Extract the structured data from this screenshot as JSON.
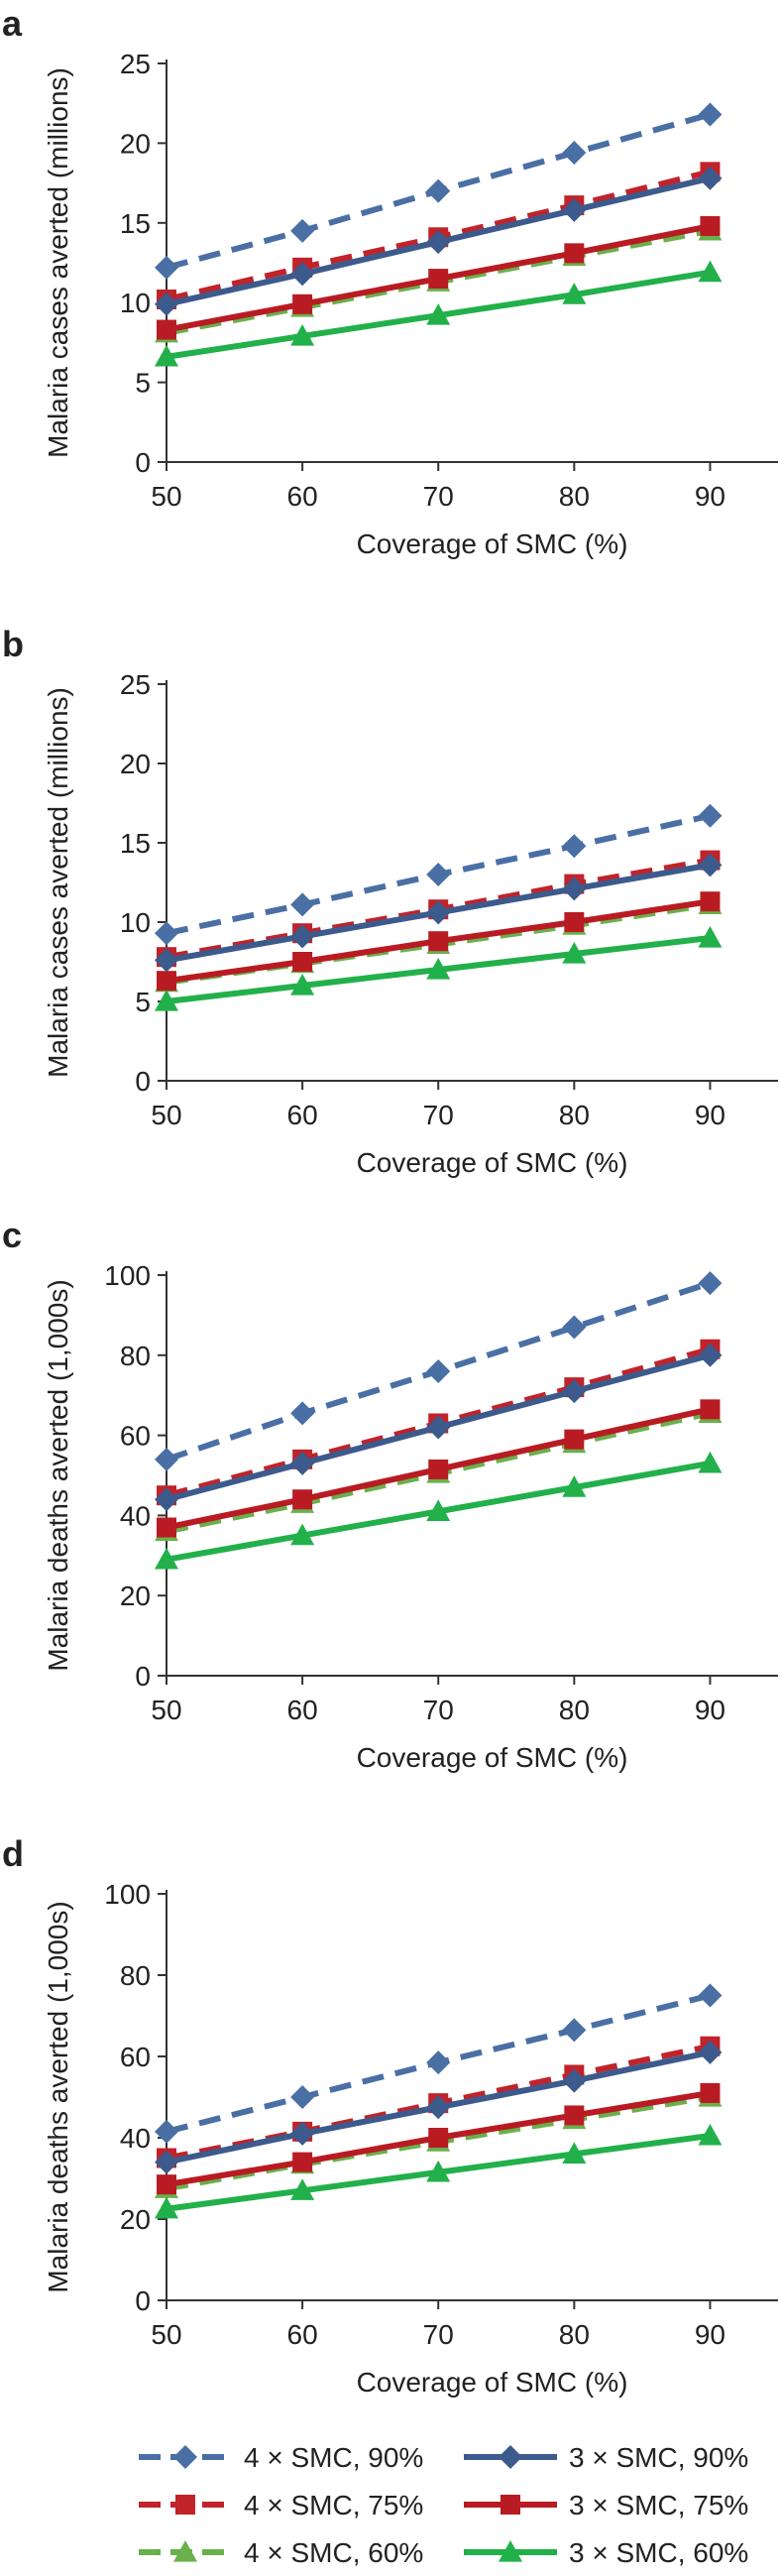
{
  "series_styles": [
    {
      "name": "4 × SMC, 90%",
      "color": "#4a6fa5",
      "dash": true,
      "marker": "diamond"
    },
    {
      "name": "3 × SMC, 90%",
      "color": "#3d5a8c",
      "dash": false,
      "marker": "diamond"
    },
    {
      "name": "4 × SMC, 75%",
      "color": "#c0232a",
      "dash": true,
      "marker": "square"
    },
    {
      "name": "3 × SMC, 75%",
      "color": "#b81c22",
      "dash": false,
      "marker": "square"
    },
    {
      "name": "4 × SMC, 60%",
      "color": "#6ab04c",
      "dash": true,
      "marker": "triangle"
    },
    {
      "name": "3 × SMC, 60%",
      "color": "#22b04a",
      "dash": false,
      "marker": "triangle"
    }
  ],
  "legend": {
    "rows": [
      [
        "4 × SMC, 90%",
        "3 × SMC, 90%"
      ],
      [
        "4 × SMC, 75%",
        "3 × SMC, 75%"
      ],
      [
        "4 × SMC, 60%",
        "3 × SMC, 60%"
      ]
    ]
  },
  "chart_data": [
    {
      "panel": "a",
      "type": "line",
      "xlabel": "Coverage of SMC (%)",
      "ylabel": "Malaria cases averted (millions)",
      "x": [
        50,
        60,
        70,
        80,
        90
      ],
      "xlim": [
        50,
        95
      ],
      "ylim": [
        0,
        25
      ],
      "yticks": [
        0,
        5,
        10,
        15,
        20,
        25
      ],
      "series": [
        {
          "name": "4 × SMC, 90%",
          "values": [
            12.2,
            14.5,
            17.0,
            19.4,
            21.8
          ]
        },
        {
          "name": "3 × SMC, 90%",
          "values": [
            9.9,
            11.8,
            13.8,
            15.8,
            17.8
          ]
        },
        {
          "name": "4 × SMC, 75%",
          "values": [
            10.2,
            12.2,
            14.1,
            16.1,
            18.2
          ]
        },
        {
          "name": "3 × SMC, 75%",
          "values": [
            8.3,
            9.9,
            11.5,
            13.1,
            14.8
          ]
        },
        {
          "name": "4 × SMC, 60%",
          "values": [
            8.1,
            9.7,
            11.3,
            12.9,
            14.5
          ]
        },
        {
          "name": "3 × SMC, 60%",
          "values": [
            6.6,
            7.9,
            9.2,
            10.5,
            11.9
          ]
        }
      ]
    },
    {
      "panel": "b",
      "type": "line",
      "xlabel": "Coverage of SMC (%)",
      "ylabel": "Malaria cases averted (millions)",
      "x": [
        50,
        60,
        70,
        80,
        90
      ],
      "xlim": [
        50,
        95
      ],
      "ylim": [
        0,
        25
      ],
      "yticks": [
        0,
        5,
        10,
        15,
        20,
        25
      ],
      "series": [
        {
          "name": "4 × SMC, 90%",
          "values": [
            9.3,
            11.1,
            13.0,
            14.8,
            16.7
          ]
        },
        {
          "name": "3 × SMC, 90%",
          "values": [
            7.6,
            9.1,
            10.6,
            12.1,
            13.6
          ]
        },
        {
          "name": "4 × SMC, 75%",
          "values": [
            7.8,
            9.3,
            10.8,
            12.4,
            13.9
          ]
        },
        {
          "name": "3 × SMC, 75%",
          "values": [
            6.3,
            7.5,
            8.8,
            10.0,
            11.3
          ]
        },
        {
          "name": "4 × SMC, 60%",
          "values": [
            6.2,
            7.4,
            8.6,
            9.8,
            11.1
          ]
        },
        {
          "name": "3 × SMC, 60%",
          "values": [
            5.0,
            6.0,
            7.0,
            8.0,
            9.0
          ]
        }
      ]
    },
    {
      "panel": "c",
      "type": "line",
      "xlabel": "Coverage of SMC (%)",
      "ylabel": "Malaria deaths averted (1,000s)",
      "x": [
        50,
        60,
        70,
        80,
        90
      ],
      "xlim": [
        50,
        95
      ],
      "ylim": [
        0,
        100
      ],
      "yticks": [
        0,
        20,
        40,
        60,
        80,
        100
      ],
      "series": [
        {
          "name": "4 × SMC, 90%",
          "values": [
            54,
            65.5,
            76,
            87,
            98
          ]
        },
        {
          "name": "3 × SMC, 90%",
          "values": [
            44,
            53,
            62,
            71,
            80
          ]
        },
        {
          "name": "4 × SMC, 75%",
          "values": [
            45,
            54,
            63,
            72,
            81.5
          ]
        },
        {
          "name": "3 × SMC, 75%",
          "values": [
            37,
            44,
            51.5,
            59,
            66.5
          ]
        },
        {
          "name": "4 × SMC, 60%",
          "values": [
            36,
            43,
            50.5,
            58,
            65.5
          ]
        },
        {
          "name": "3 × SMC, 60%",
          "values": [
            29,
            35,
            41,
            47,
            53
          ]
        }
      ]
    },
    {
      "panel": "d",
      "type": "line",
      "xlabel": "Coverage of SMC (%)",
      "ylabel": "Malaria deaths averted (1,000s)",
      "x": [
        50,
        60,
        70,
        80,
        90
      ],
      "xlim": [
        50,
        95
      ],
      "ylim": [
        0,
        100
      ],
      "yticks": [
        0,
        20,
        40,
        60,
        80,
        100
      ],
      "series": [
        {
          "name": "4 × SMC, 90%",
          "values": [
            41.5,
            50,
            58.5,
            66.5,
            75
          ]
        },
        {
          "name": "3 × SMC, 90%",
          "values": [
            34,
            41,
            47.5,
            54,
            61
          ]
        },
        {
          "name": "4 × SMC, 75%",
          "values": [
            35,
            41.5,
            48.5,
            55.5,
            62.5
          ]
        },
        {
          "name": "3 × SMC, 75%",
          "values": [
            28.5,
            34,
            40,
            45.5,
            51
          ]
        },
        {
          "name": "4 × SMC, 60%",
          "values": [
            27.5,
            33.5,
            39,
            44.5,
            50
          ]
        },
        {
          "name": "3 × SMC, 60%",
          "values": [
            22.5,
            27,
            31.5,
            36,
            40.5
          ]
        }
      ]
    }
  ]
}
